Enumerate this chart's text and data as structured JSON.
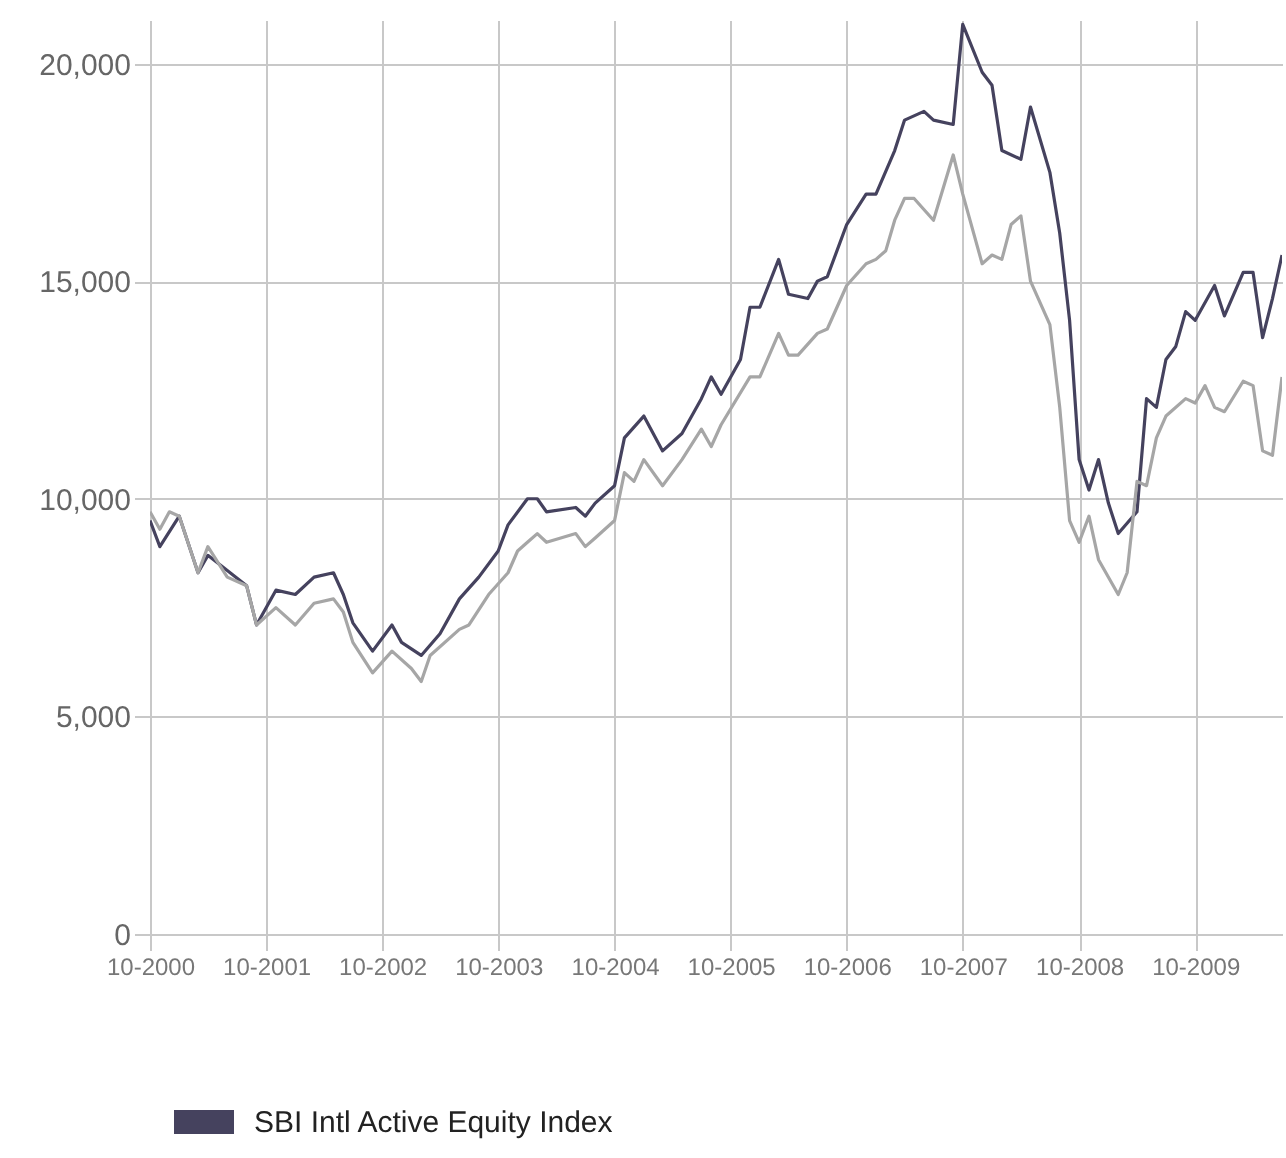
{
  "chart_data": {
    "type": "line",
    "legend": "bottom",
    "grid": true,
    "xlim": [
      "2000-10",
      "2010-07"
    ],
    "ylim": [
      0,
      21000
    ],
    "xticks": [
      {
        "value": "2000-10",
        "label": "10-2000"
      },
      {
        "value": "2001-10",
        "label": "10-2001"
      },
      {
        "value": "2002-10",
        "label": "10-2002"
      },
      {
        "value": "2003-10",
        "label": "10-2003"
      },
      {
        "value": "2004-10",
        "label": "10-2004"
      },
      {
        "value": "2005-10",
        "label": "10-2005"
      },
      {
        "value": "2006-10",
        "label": "10-2006"
      },
      {
        "value": "2007-10",
        "label": "10-2007"
      },
      {
        "value": "2008-10",
        "label": "10-2008"
      },
      {
        "value": "2009-10",
        "label": "10-2009"
      }
    ],
    "yticks": [
      0,
      {
        "value": 5000,
        "label": "5,000"
      },
      {
        "value": 10000,
        "label": "10,000"
      },
      {
        "value": 15000,
        "label": "15,000"
      },
      {
        "value": 20000,
        "label": "20,000"
      }
    ],
    "series": [
      {
        "name": "SBI Intl Active Equity Index",
        "color": "#45425e",
        "x": [
          "2000-10",
          "2000-11",
          "2001-01",
          "2001-03",
          "2001-04",
          "2001-08",
          "2001-09",
          "2001-11",
          "2002-01",
          "2002-03",
          "2002-05",
          "2002-06",
          "2002-07",
          "2002-09",
          "2002-11",
          "2002-12",
          "2003-02",
          "2003-04",
          "2003-06",
          "2003-08",
          "2003-10",
          "2003-11",
          "2004-01",
          "2004-02",
          "2004-03",
          "2004-06",
          "2004-07",
          "2004-08",
          "2004-10",
          "2004-11",
          "2005-01",
          "2005-03",
          "2005-05",
          "2005-07",
          "2005-08",
          "2005-09",
          "2005-11",
          "2005-12",
          "2006-01",
          "2006-03",
          "2006-04",
          "2006-06",
          "2006-07",
          "2006-08",
          "2006-10",
          "2006-12",
          "2007-01",
          "2007-03",
          "2007-04",
          "2007-06",
          "2007-07",
          "2007-09",
          "2007-10",
          "2007-12",
          "2008-01",
          "2008-02",
          "2008-04",
          "2008-05",
          "2008-07",
          "2008-08",
          "2008-09",
          "2008-10",
          "2008-11",
          "2008-12",
          "2009-01",
          "2009-02",
          "2009-04",
          "2009-05",
          "2009-06",
          "2009-07",
          "2009-08",
          "2009-09",
          "2009-10",
          "2009-12",
          "2010-01",
          "2010-03",
          "2010-04",
          "2010-05",
          "2010-06",
          "2010-07"
        ],
        "values": [
          9500,
          8900,
          9600,
          8300,
          8700,
          8000,
          7100,
          7900,
          7800,
          8200,
          8300,
          7800,
          7150,
          6500,
          7100,
          6700,
          6400,
          6900,
          7700,
          8200,
          8800,
          9400,
          10000,
          10000,
          9700,
          9800,
          9600,
          9900,
          10300,
          11400,
          11900,
          11100,
          11500,
          12300,
          12800,
          12400,
          13200,
          14400,
          14400,
          15500,
          14700,
          14600,
          15000,
          15100,
          16300,
          17000,
          17000,
          18000,
          18700,
          18900,
          18700,
          18600,
          20900,
          19800,
          19500,
          18000,
          17800,
          19000,
          17500,
          16100,
          14100,
          10900,
          10200,
          10900,
          9900,
          9200,
          9700,
          12300,
          12100,
          13200,
          13500,
          14300,
          14100,
          14900,
          14200,
          15200,
          15200,
          13700,
          14600,
          15600
        ]
      },
      {
        "color": "#a6a6a6",
        "x": [
          "2000-10",
          "2000-11",
          "2000-12",
          "2001-01",
          "2001-03",
          "2001-04",
          "2001-06",
          "2001-08",
          "2001-09",
          "2001-11",
          "2002-01",
          "2002-03",
          "2002-05",
          "2002-06",
          "2002-07",
          "2002-09",
          "2002-11",
          "2003-01",
          "2003-02",
          "2003-03",
          "2003-06",
          "2003-07",
          "2003-09",
          "2003-11",
          "2003-12",
          "2004-01",
          "2004-02",
          "2004-03",
          "2004-06",
          "2004-07",
          "2004-08",
          "2004-10",
          "2004-11",
          "2004-12",
          "2005-01",
          "2005-03",
          "2005-05",
          "2005-07",
          "2005-08",
          "2005-09",
          "2005-12",
          "2006-01",
          "2006-03",
          "2006-04",
          "2006-05",
          "2006-07",
          "2006-08",
          "2006-10",
          "2006-12",
          "2007-01",
          "2007-02",
          "2007-03",
          "2007-04",
          "2007-05",
          "2007-07",
          "2007-09",
          "2007-10",
          "2007-12",
          "2008-01",
          "2008-02",
          "2008-03",
          "2008-04",
          "2008-05",
          "2008-07",
          "2008-08",
          "2008-09",
          "2008-10",
          "2008-11",
          "2008-12",
          "2009-02",
          "2009-03",
          "2009-04",
          "2009-05",
          "2009-06",
          "2009-07",
          "2009-09",
          "2009-10",
          "2009-11",
          "2009-12",
          "2010-01",
          "2010-03",
          "2010-04",
          "2010-05",
          "2010-06",
          "2010-07"
        ],
        "values": [
          9700,
          9300,
          9700,
          9600,
          8300,
          8900,
          8200,
          8000,
          7100,
          7500,
          7100,
          7600,
          7700,
          7400,
          6700,
          6000,
          6500,
          6100,
          5800,
          6400,
          7000,
          7100,
          7800,
          8300,
          8800,
          9000,
          9200,
          9000,
          9200,
          8900,
          9100,
          9500,
          10600,
          10400,
          10900,
          10300,
          10900,
          11600,
          11200,
          11700,
          12800,
          12800,
          13800,
          13300,
          13300,
          13800,
          13900,
          14900,
          15400,
          15500,
          15700,
          16400,
          16900,
          16900,
          16400,
          17900,
          17000,
          15400,
          15600,
          15500,
          16300,
          16500,
          15000,
          14000,
          12100,
          9500,
          9000,
          9600,
          8600,
          7800,
          8300,
          10400,
          10300,
          11400,
          11900,
          12300,
          12200,
          12600,
          12100,
          12000,
          12700,
          12600,
          11100,
          11000,
          12800
        ]
      }
    ]
  }
}
